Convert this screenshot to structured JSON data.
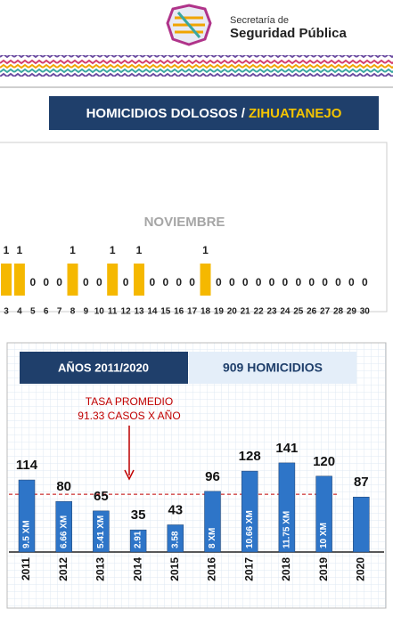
{
  "header": {
    "org_line1": "Secretaría de",
    "org_line2": "Seguridad Pública"
  },
  "banner": {
    "title": "HOMICIDIOS DOLOSOS /",
    "place": "ZIHUATANEJO"
  },
  "chart_data": [
    {
      "type": "bar",
      "title": "NOVIEMBRE",
      "color": "#f5b800",
      "categories": [
        "3",
        "4",
        "5",
        "6",
        "7",
        "8",
        "9",
        "10",
        "11",
        "12",
        "13",
        "14",
        "15",
        "16",
        "17",
        "18",
        "19",
        "20",
        "21",
        "22",
        "23",
        "24",
        "25",
        "26",
        "27",
        "28",
        "29",
        "30"
      ],
      "values": [
        1,
        1,
        0,
        0,
        0,
        1,
        0,
        0,
        1,
        0,
        1,
        0,
        0,
        0,
        0,
        1,
        0,
        0,
        0,
        0,
        0,
        0,
        0,
        0,
        0,
        0,
        0,
        0
      ]
    },
    {
      "type": "bar",
      "period": "AÑOS 2011/2020",
      "total": "909 HOMICIDIOS",
      "color": "#2e75c8",
      "categories": [
        "2011",
        "2012",
        "2013",
        "2014",
        "2015",
        "2016",
        "2017",
        "2018",
        "2019",
        "2020"
      ],
      "values": [
        114,
        80,
        65,
        35,
        43,
        96,
        128,
        141,
        120,
        87
      ],
      "rate_labels": [
        "9.5 XM",
        "6.66 XM",
        "5.41 XM",
        "2.91",
        "3.58",
        "8 XM",
        "10.66 XM",
        "11.75 XM",
        "10 XM",
        null
      ],
      "average": 91.33,
      "annotation": [
        "TASA PROMEDIO",
        "91.33 CASOS X AÑO"
      ]
    }
  ]
}
